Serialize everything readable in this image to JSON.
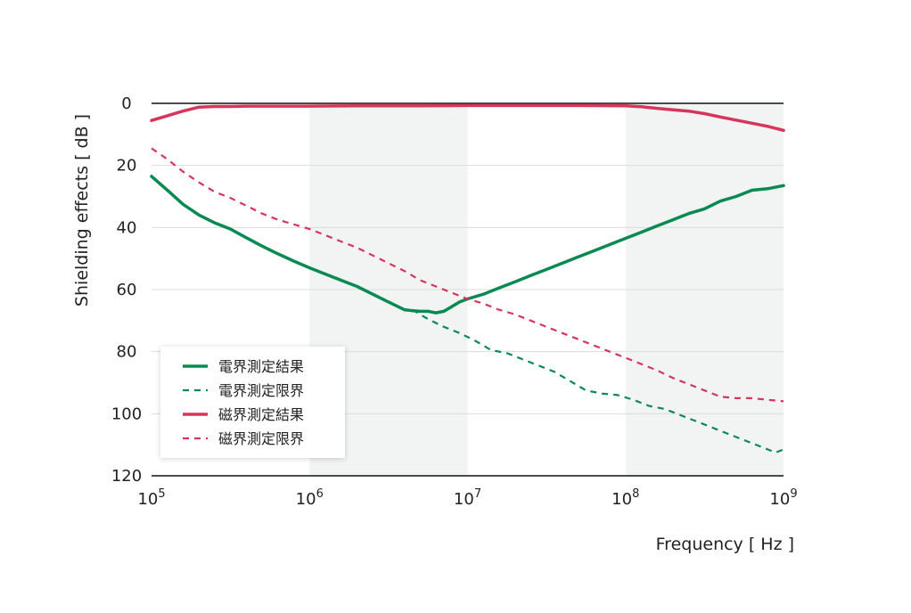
{
  "chart_data": {
    "type": "line",
    "title": "",
    "xlabel": "Frequency [ Hz ]",
    "ylabel": "Shielding effects [ dB ]",
    "x_scale": "log",
    "xlim": [
      100000,
      1000000000
    ],
    "ylim": [
      0,
      120
    ],
    "y_inverted": true,
    "x_ticks": [
      {
        "base": "10",
        "exp": "5"
      },
      {
        "base": "10",
        "exp": "6"
      },
      {
        "base": "10",
        "exp": "7"
      },
      {
        "base": "10",
        "exp": "8"
      },
      {
        "base": "10",
        "exp": "9"
      }
    ],
    "y_ticks": [
      "0",
      "20",
      "40",
      "60",
      "80",
      "100",
      "120"
    ],
    "grid": true,
    "shaded_decades": [
      [
        1000000,
        10000000
      ],
      [
        100000000,
        1000000000
      ]
    ],
    "legend_position": "bottom-left",
    "series": [
      {
        "name": "電界測定結果",
        "color": "#0a8a52",
        "dash": "solid",
        "x": [
          100000,
          126000,
          158000,
          200000,
          251000,
          316000,
          398000,
          501000,
          631000,
          794000,
          1000000,
          1260000,
          1580000,
          2000000,
          2510000,
          3160000,
          3980000,
          4470000,
          5010000,
          5620000,
          6310000,
          7080000,
          7940000,
          8910000,
          10000000,
          12600000,
          15800000,
          20000000,
          25100000,
          31600000,
          39800000,
          50100000,
          63100000,
          79400000,
          100000000,
          126000000,
          158000000,
          200000000,
          251000000,
          316000000,
          398000000,
          501000000,
          631000000,
          794000000,
          1000000000
        ],
        "y": [
          23.5,
          28,
          32.5,
          36,
          38.5,
          40.5,
          43.3,
          46,
          48.5,
          50.8,
          53,
          55,
          57,
          59,
          61.5,
          64,
          66.5,
          66.8,
          67,
          67,
          67.5,
          67,
          65.5,
          64,
          63,
          61.5,
          59.5,
          57.5,
          55.5,
          53.5,
          51.5,
          49.5,
          47.5,
          45.5,
          43.5,
          41.5,
          39.5,
          37.5,
          35.5,
          34,
          31.5,
          30,
          28,
          27.5,
          26.5
        ]
      },
      {
        "name": "電界測定限界",
        "color": "#0a8a52",
        "dash": "dashed",
        "x": [
          4470000,
          5620000,
          7080000,
          8910000,
          11200000,
          14100000,
          17800000,
          22400000,
          28200000,
          35500000,
          44700000,
          56200000,
          70800000,
          89100000,
          112000000,
          141000000,
          178000000,
          224000000,
          282000000,
          355000000,
          447000000,
          562000000,
          708000000,
          891000000,
          1000000000
        ],
        "y": [
          66.5,
          69.5,
          72,
          74,
          76.5,
          79.5,
          80.5,
          82.5,
          84.5,
          86.5,
          89.5,
          92.5,
          93.5,
          94,
          95.5,
          97.5,
          98.5,
          100.5,
          102.5,
          104.5,
          106.5,
          108.5,
          110.5,
          112.5,
          111.5
        ]
      },
      {
        "name": "磁界測定結果",
        "color": "#d6365c",
        "dash": "solid",
        "x": [
          100000,
          126000,
          158000,
          200000,
          251000,
          316000,
          398000,
          501000,
          1000000,
          2000000,
          5010000,
          10000000,
          20000000,
          50100000,
          100000000,
          126000000,
          158000000,
          200000000,
          251000000,
          316000000,
          398000000,
          501000000,
          631000000,
          794000000,
          1000000000
        ],
        "y": [
          5.5,
          4,
          2.5,
          1.2,
          1,
          1,
          0.9,
          0.9,
          0.9,
          0.8,
          0.8,
          0.7,
          0.7,
          0.7,
          0.8,
          1.1,
          1.6,
          2.1,
          2.5,
          3.3,
          4.4,
          5.4,
          6.4,
          7.4,
          8.7
        ]
      },
      {
        "name": "磁界測定限界",
        "color": "#d6365c",
        "dash": "dashed",
        "x": [
          100000,
          126000,
          158000,
          200000,
          251000,
          316000,
          398000,
          501000,
          631000,
          794000,
          1000000,
          1260000,
          1580000,
          2000000,
          2510000,
          3160000,
          3980000,
          5010000,
          6310000,
          7940000,
          10000000,
          12600000,
          15800000,
          20000000,
          25100000,
          31600000,
          39800000,
          50100000,
          63100000,
          79400000,
          100000000,
          126000000,
          158000000,
          200000000,
          251000000,
          316000000,
          398000000,
          501000000,
          631000000,
          794000000,
          1000000000
        ],
        "y": [
          14.5,
          18,
          22,
          25.5,
          28.5,
          30.5,
          33,
          35.5,
          37.5,
          39,
          40.5,
          42.5,
          44.5,
          46.5,
          49,
          51.5,
          54,
          57,
          59,
          61,
          63,
          64.5,
          66.5,
          68,
          70,
          72,
          74,
          76,
          78,
          80,
          82,
          84,
          86,
          88.5,
          90.5,
          92.5,
          94.5,
          95,
          95,
          95.5,
          96
        ]
      }
    ]
  }
}
